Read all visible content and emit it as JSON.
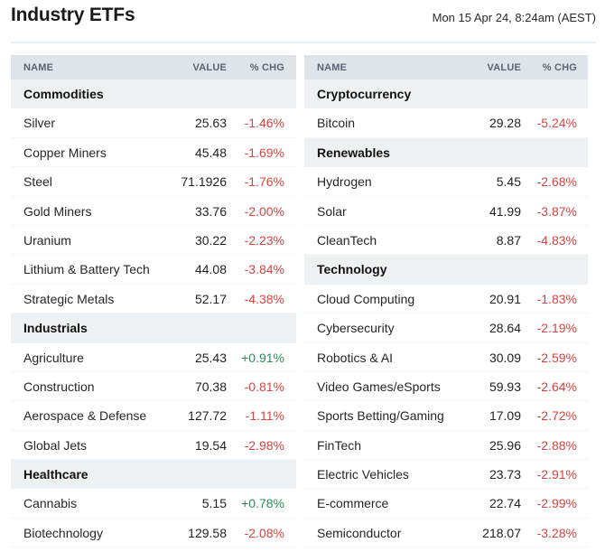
{
  "header": {
    "title": "Industry ETFs",
    "timestamp": "Mon 15 Apr 24, 8:24am (AEST)"
  },
  "columns": {
    "name": "NAME",
    "value": "VALUE",
    "change": "% CHG"
  },
  "left": [
    {
      "type": "group",
      "name": "Commodities"
    },
    {
      "type": "item",
      "name": "Silver",
      "value": "25.63",
      "chg": "-1.46%"
    },
    {
      "type": "item",
      "name": "Copper Miners",
      "value": "45.48",
      "chg": "-1.69%"
    },
    {
      "type": "item",
      "name": "Steel",
      "value": "71.1926",
      "chg": "-1.76%"
    },
    {
      "type": "item",
      "name": "Gold Miners",
      "value": "33.76",
      "chg": "-2.00%"
    },
    {
      "type": "item",
      "name": "Uranium",
      "value": "30.22",
      "chg": "-2.23%"
    },
    {
      "type": "item",
      "name": "Lithium & Battery Tech",
      "value": "44.08",
      "chg": "-3.84%"
    },
    {
      "type": "item",
      "name": "Strategic Metals",
      "value": "52.17",
      "chg": "-4.38%"
    },
    {
      "type": "group",
      "name": "Industrials"
    },
    {
      "type": "item",
      "name": "Agriculture",
      "value": "25.43",
      "chg": "+0.91%"
    },
    {
      "type": "item",
      "name": "Construction",
      "value": "70.38",
      "chg": "-0.81%"
    },
    {
      "type": "item",
      "name": "Aerospace & Defense",
      "value": "127.72",
      "chg": "-1.11%"
    },
    {
      "type": "item",
      "name": "Global Jets",
      "value": "19.54",
      "chg": "-2.98%"
    },
    {
      "type": "group",
      "name": "Healthcare"
    },
    {
      "type": "item",
      "name": "Cannabis",
      "value": "5.15",
      "chg": "+0.78%"
    },
    {
      "type": "item",
      "name": "Biotechnology",
      "value": "129.58",
      "chg": "-2.08%"
    }
  ],
  "right": [
    {
      "type": "group",
      "name": "Cryptocurrency"
    },
    {
      "type": "item",
      "name": "Bitcoin",
      "value": "29.28",
      "chg": "-5.24%"
    },
    {
      "type": "group",
      "name": "Renewables"
    },
    {
      "type": "item",
      "name": "Hydrogen",
      "value": "5.45",
      "chg": "-2.68%"
    },
    {
      "type": "item",
      "name": "Solar",
      "value": "41.99",
      "chg": "-3.87%"
    },
    {
      "type": "item",
      "name": "CleanTech",
      "value": "8.87",
      "chg": "-4.83%"
    },
    {
      "type": "group",
      "name": "Technology"
    },
    {
      "type": "item",
      "name": "Cloud Computing",
      "value": "20.91",
      "chg": "-1.83%"
    },
    {
      "type": "item",
      "name": "Cybersecurity",
      "value": "28.64",
      "chg": "-2.19%"
    },
    {
      "type": "item",
      "name": "Robotics & AI",
      "value": "30.09",
      "chg": "-2.59%"
    },
    {
      "type": "item",
      "name": "Video Games/eSports",
      "value": "59.93",
      "chg": "-2.64%"
    },
    {
      "type": "item",
      "name": "Sports Betting/Gaming",
      "value": "17.09",
      "chg": "-2.72%"
    },
    {
      "type": "item",
      "name": "FinTech",
      "value": "25.96",
      "chg": "-2.88%"
    },
    {
      "type": "item",
      "name": "Electric Vehicles",
      "value": "23.73",
      "chg": "-2.91%"
    },
    {
      "type": "item",
      "name": "E-commerce",
      "value": "22.74",
      "chg": "-2.99%"
    },
    {
      "type": "item",
      "name": "Semiconductor",
      "value": "218.07",
      "chg": "-3.28%"
    }
  ],
  "colors": {
    "negative": "#d64541",
    "positive": "#2e8b57",
    "header_bg": "#dfe4ea",
    "group_bg": "#eef1f4"
  }
}
